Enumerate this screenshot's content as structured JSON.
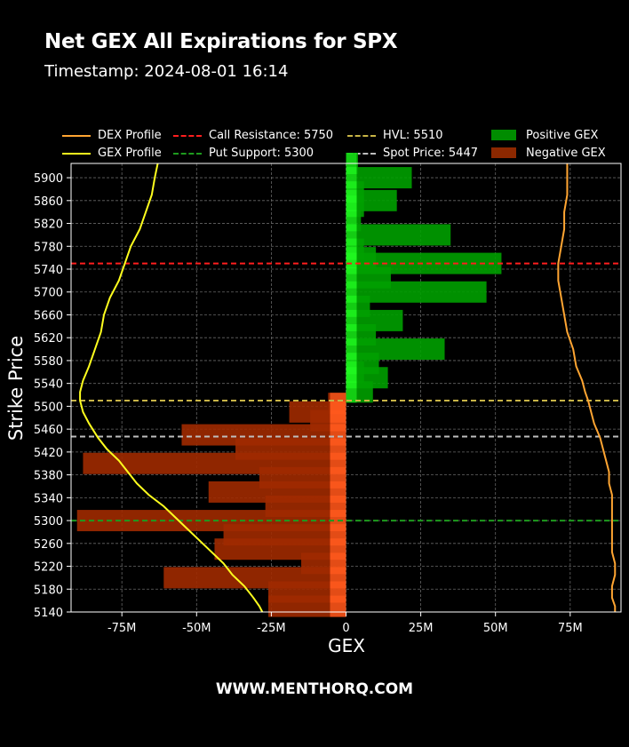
{
  "header": {
    "title": "Net GEX All Expirations for SPX",
    "subtitle": "Timestamp: 2024-08-01 16:14"
  },
  "footer": {
    "text": "WWW.MENTHORQ.COM"
  },
  "legend": [
    {
      "label": "DEX Profile",
      "color": "#ffa532",
      "style": "solid"
    },
    {
      "label": "GEX Profile",
      "color": "#ffff1e",
      "style": "solid"
    },
    {
      "label": "Call Resistance: 5750",
      "color": "#ff1e1e",
      "style": "dashed"
    },
    {
      "label": "Put Support: 5300",
      "color": "#1e9b1e",
      "style": "dashed"
    },
    {
      "label": "HVL: 5510",
      "color": "#c8b446",
      "style": "dashed"
    },
    {
      "label": "Spot Price: 5447",
      "color": "#bebebe",
      "style": "dashed"
    },
    {
      "label": "Positive GEX",
      "color": "#008c00",
      "style": "box"
    },
    {
      "label": "Negative GEX",
      "color": "#8c2800",
      "style": "box"
    }
  ],
  "chart_data": {
    "type": "bar",
    "orientation": "horizontal",
    "xlabel": "GEX",
    "ylabel": "Strike Price",
    "xlim": [
      -92,
      92
    ],
    "ylim": [
      5140,
      5925
    ],
    "x_unit": "M",
    "x_ticks": [
      -75,
      -50,
      -25,
      0,
      25,
      50,
      75
    ],
    "x_tick_labels": [
      "-75M",
      "-50M",
      "-25M",
      "0",
      "25M",
      "50M",
      "75M"
    ],
    "y_ticks": [
      5140,
      5180,
      5220,
      5260,
      5300,
      5340,
      5380,
      5420,
      5460,
      5500,
      5540,
      5580,
      5620,
      5660,
      5700,
      5740,
      5780,
      5820,
      5860,
      5900
    ],
    "grid": true,
    "lines": [
      {
        "name": "Call Resistance",
        "value": 5750,
        "color": "#ff1e1e"
      },
      {
        "name": "Put Support",
        "value": 5300,
        "color": "#1e9b1e"
      },
      {
        "name": "HVL",
        "value": 5510,
        "color": "#c8b446"
      },
      {
        "name": "Spot Price",
        "value": 5447,
        "color": "#bebebe"
      }
    ],
    "positive_gex": {
      "strike": [
        5925,
        5900,
        5875,
        5860,
        5850,
        5825,
        5800,
        5775,
        5760,
        5750,
        5725,
        5700,
        5675,
        5650,
        5625,
        5600,
        5575,
        5560,
        5550,
        5525
      ],
      "value": [
        4,
        22,
        6,
        17,
        6,
        5,
        35,
        6,
        10,
        52,
        15,
        47,
        8,
        19,
        10,
        33,
        11,
        6,
        14,
        9
      ]
    },
    "negative_gex": {
      "strike": [
        5505,
        5490,
        5475,
        5450,
        5425,
        5400,
        5375,
        5350,
        5325,
        5300,
        5275,
        5250,
        5225,
        5200,
        5175,
        5150
      ],
      "value": [
        -6,
        -19,
        -12,
        -55,
        -37,
        -88,
        -29,
        -46,
        -27,
        -90,
        -41,
        -44,
        -15,
        -61,
        -26,
        -26
      ]
    },
    "gex_profile": {
      "strike": [
        5925,
        5900,
        5870,
        5840,
        5810,
        5780,
        5750,
        5720,
        5690,
        5660,
        5630,
        5600,
        5570,
        5545,
        5525,
        5510,
        5490,
        5470,
        5445,
        5425,
        5405,
        5385,
        5365,
        5345,
        5325,
        5305,
        5285,
        5265,
        5245,
        5225,
        5205,
        5185,
        5165,
        5150,
        5140
      ],
      "value": [
        -63,
        -64,
        -65,
        -67,
        -69,
        -72,
        -74,
        -76,
        -79,
        -81,
        -82,
        -84,
        -86,
        -88,
        -89,
        -89,
        -88,
        -86,
        -83,
        -80,
        -76,
        -73,
        -70,
        -66,
        -61,
        -57,
        -53,
        -49,
        -45,
        -41,
        -38,
        -34,
        -31,
        -29,
        -28
      ]
    },
    "dex_profile": {
      "strike": [
        5925,
        5900,
        5870,
        5840,
        5810,
        5780,
        5750,
        5720,
        5690,
        5660,
        5630,
        5600,
        5570,
        5545,
        5525,
        5510,
        5490,
        5470,
        5445,
        5425,
        5405,
        5385,
        5365,
        5345,
        5325,
        5305,
        5285,
        5265,
        5245,
        5225,
        5205,
        5185,
        5165,
        5150,
        5140
      ],
      "value": [
        74,
        74,
        74,
        73,
        73,
        72,
        71,
        71,
        72,
        73,
        74,
        76,
        77,
        79,
        80,
        81,
        82,
        83,
        85,
        86,
        87,
        88,
        88,
        89,
        89,
        89,
        89,
        89,
        89,
        90,
        90,
        89,
        89,
        90,
        90
      ]
    }
  }
}
